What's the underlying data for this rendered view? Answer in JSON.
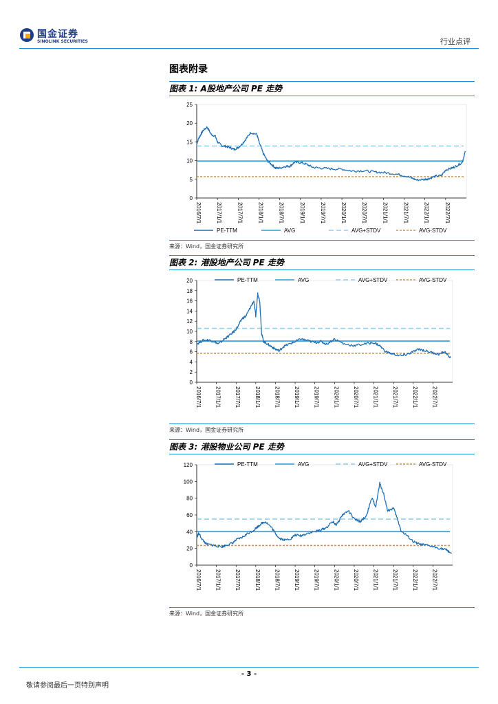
{
  "header": {
    "company_cn": "国金证券",
    "company_en": "SINOLINK SECURITIES",
    "report_type": "行业点评"
  },
  "section_title": "图表附录",
  "legend": {
    "pe": "PE-TTM",
    "avg": "AVG",
    "plus": "AVG+STDV",
    "minus": "AVG-STDV"
  },
  "colors": {
    "pe": "#1f6fb4",
    "avg": "#2e9bd6",
    "plus": "#8fd0ef",
    "minus": "#c99550",
    "rule": "#1a8fd1"
  },
  "figures": [
    {
      "title": "图表 1:  A股地产公司 PE 走势",
      "source": "来源：Wind，国金证券研究所"
    },
    {
      "title": "图表 2:  港股地产公司 PE 走势",
      "source": "来源：Wind，国金证券研究所"
    },
    {
      "title": "图表 3:  港股物业公司 PE 走势",
      "source": "来源：Wind，国金证券研究所"
    }
  ],
  "chart_data": [
    {
      "type": "line",
      "title": "A股地产公司 PE 走势",
      "x_tick_labels": [
        "2016/7/1",
        "2017/1/1",
        "2017/7/1",
        "2018/1/1",
        "2018/7/1",
        "2019/1/1",
        "2019/7/1",
        "2020/1/1",
        "2020/7/1",
        "2021/1/1",
        "2021/7/1",
        "2022/1/1",
        "2022/7/1"
      ],
      "ylim": [
        0,
        25
      ],
      "y_ticks": [
        0,
        5,
        10,
        15,
        20,
        25
      ],
      "legend_position": "bottom",
      "series": [
        {
          "name": "PE-TTM",
          "x": [
            0,
            0.1,
            0.2,
            0.3,
            0.5,
            0.7,
            0.9,
            1.0,
            1.2,
            1.4,
            1.6,
            1.8,
            2.0,
            2.2,
            2.4,
            2.6,
            2.9,
            3.0,
            3.2,
            3.4,
            3.6,
            3.8,
            4.0,
            4.3,
            4.5,
            4.7,
            5.0,
            5.3,
            5.6,
            6.0,
            6.5,
            7.0,
            7.5,
            8.0,
            8.5,
            9.0,
            9.5,
            10.0,
            10.3,
            10.6,
            11.0,
            11.2,
            11.5,
            11.8,
            12.0,
            12.3,
            12.5,
            12.8,
            12.95
          ],
          "values": [
            14.5,
            16,
            17,
            18,
            19,
            17,
            16.5,
            15,
            14,
            13.8,
            13.5,
            13,
            13.5,
            14.5,
            16,
            17.5,
            17,
            15,
            12,
            10,
            9,
            8,
            8,
            8.5,
            8.5,
            9.5,
            9.5,
            9,
            8.2,
            8,
            7.8,
            7.7,
            7.2,
            7.3,
            7,
            6.8,
            6.5,
            6,
            5.5,
            4.8,
            5,
            5.2,
            5.8,
            6,
            7.5,
            8,
            8.5,
            9.5,
            12.5
          ]
        },
        {
          "name": "AVG",
          "values": [
            9.9
          ]
        },
        {
          "name": "AVG+STDV",
          "values": [
            13.9
          ]
        },
        {
          "name": "AVG-STDV",
          "values": [
            5.7
          ]
        }
      ]
    },
    {
      "type": "line",
      "title": "港股地产公司 PE 走势",
      "x_tick_labels": [
        "2016/7/1",
        "2017/1/1",
        "2017/7/1",
        "2018/1/1",
        "2018/7/1",
        "2019/1/1",
        "2019/7/1",
        "2020/1/1",
        "2020/7/1",
        "2021/1/1",
        "2021/7/1",
        "2022/1/1",
        "2022/7/1"
      ],
      "ylim": [
        0,
        20
      ],
      "y_ticks": [
        0,
        2,
        4,
        6,
        8,
        10,
        12,
        14,
        16,
        18,
        20
      ],
      "legend_position": "top",
      "series": [
        {
          "name": "PE-TTM",
          "x": [
            0,
            0.3,
            0.6,
            0.9,
            1.1,
            1.4,
            1.6,
            1.9,
            2.1,
            2.3,
            2.5,
            2.7,
            2.9,
            3.0,
            3.1,
            3.2,
            3.3,
            3.4,
            3.6,
            3.8,
            4.0,
            4.2,
            4.4,
            4.7,
            5.0,
            5.3,
            5.6,
            6.0,
            6.3,
            6.6,
            7.0,
            7.5,
            8.0,
            8.5,
            9.0,
            9.3,
            9.6,
            10.0,
            10.4,
            10.7,
            11.0,
            11.3,
            11.6,
            12.0,
            12.3,
            12.6,
            12.9
          ],
          "values": [
            7.5,
            8.2,
            8.3,
            8,
            7.5,
            8.5,
            9,
            10,
            11,
            12.5,
            13,
            14.5,
            16,
            13,
            17.5,
            16,
            9.5,
            8,
            7.5,
            7,
            6.5,
            6.2,
            7,
            7.5,
            8,
            8.5,
            8.2,
            7.8,
            8,
            7.5,
            8.5,
            7.5,
            7.2,
            7.5,
            7.8,
            7.2,
            6,
            5.5,
            5.2,
            5.5,
            6,
            6.5,
            6.2,
            5.8,
            5.5,
            6,
            4.8
          ]
        },
        {
          "name": "AVG",
          "values": [
            8.1
          ]
        },
        {
          "name": "AVG+STDV",
          "values": [
            10.6
          ]
        },
        {
          "name": "AVG-STDV",
          "values": [
            5.7
          ]
        }
      ]
    },
    {
      "type": "line",
      "title": "港股物业公司 PE 走势",
      "x_tick_labels": [
        "2016/7/1",
        "2017/1/1",
        "2017/7/1",
        "2018/1/1",
        "2018/7/1",
        "2019/1/1",
        "2019/7/1",
        "2020/1/1",
        "2020/7/1",
        "2021/1/1",
        "2021/7/1",
        "2022/1/1",
        "2022/7/1"
      ],
      "ylim": [
        0,
        120
      ],
      "y_ticks": [
        0,
        20,
        40,
        60,
        80,
        100,
        120
      ],
      "legend_position": "top",
      "series": [
        {
          "name": "PE-TTM",
          "x": [
            0,
            0.1,
            0.3,
            0.5,
            0.8,
            1.0,
            1.3,
            1.5,
            1.8,
            2.0,
            2.3,
            2.6,
            2.9,
            3.1,
            3.3,
            3.5,
            3.8,
            4.0,
            4.2,
            4.5,
            4.8,
            5.0,
            5.3,
            5.6,
            6.0,
            6.3,
            6.6,
            6.9,
            7.1,
            7.4,
            7.7,
            8.0,
            8.3,
            8.6,
            8.9,
            9.1,
            9.3,
            9.5,
            9.7,
            10.0,
            10.2,
            10.4,
            10.7,
            11.0,
            11.3,
            11.6,
            12.0,
            12.4,
            12.7,
            12.95
          ],
          "values": [
            33,
            38,
            30,
            25,
            24,
            23,
            22,
            24,
            26,
            30,
            33,
            38,
            42,
            46,
            50,
            52,
            45,
            38,
            32,
            30,
            32,
            36,
            35,
            38,
            40,
            42,
            45,
            52,
            48,
            60,
            65,
            55,
            52,
            58,
            80,
            70,
            98,
            85,
            65,
            68,
            55,
            40,
            35,
            28,
            25,
            24,
            22,
            20,
            18,
            14
          ]
        },
        {
          "name": "AVG",
          "values": [
            40
          ]
        },
        {
          "name": "AVG+STDV",
          "values": [
            55
          ]
        },
        {
          "name": "AVG-STDV",
          "values": [
            23.5
          ]
        }
      ]
    }
  ],
  "footer": {
    "page_number": "- 3 -",
    "disclaimer": "敬请参阅最后一页特别声明"
  }
}
